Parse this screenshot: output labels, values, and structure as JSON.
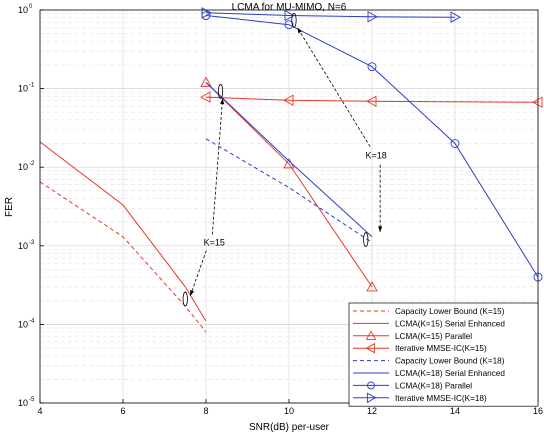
{
  "chart_data": {
    "type": "line",
    "title": "LCMA for MU-MIMO, N=6",
    "xlabel": "SNR(dB) per-user",
    "ylabel": "FER",
    "xlim": [
      4,
      16
    ],
    "ylim_log10": [
      -5,
      0
    ],
    "y_scale": "log",
    "grid": true,
    "legend_position": "bottom-right",
    "x_ticks": [
      "4",
      "6",
      "8",
      "10",
      "12",
      "14",
      "16"
    ],
    "y_ticks": [
      {
        "base": "10",
        "exp": "0",
        "value": 1
      },
      {
        "base": "10",
        "exp": "-1",
        "value": 0.1
      },
      {
        "base": "10",
        "exp": "-2",
        "value": 0.01
      },
      {
        "base": "10",
        "exp": "-3",
        "value": 0.001
      },
      {
        "base": "10",
        "exp": "-4",
        "value": 0.0001
      },
      {
        "base": "10",
        "exp": "-5",
        "value": 1e-05
      }
    ],
    "series": [
      {
        "name": "Capacity Lower Bound (K=15)",
        "color": "#e8372a",
        "dash": "4,3",
        "marker": "none",
        "x": [
          4,
          6,
          7.5,
          8
        ],
        "y": [
          0.0065,
          0.0013,
          0.00017,
          8e-05
        ]
      },
      {
        "name": "LCMA(K=15) Serial Enhanced",
        "color": "#e8372a",
        "dash": "",
        "marker": "none",
        "x": [
          4,
          6,
          7.5,
          8
        ],
        "y": [
          0.021,
          0.0033,
          0.0003,
          0.00011
        ]
      },
      {
        "name": "LCMA(K=15) Parallel",
        "color": "#e8372a",
        "dash": "",
        "marker": "triangle-up",
        "x": [
          8,
          10,
          12
        ],
        "y": [
          0.12,
          0.011,
          0.0003
        ]
      },
      {
        "name": "Iterative MMSE-IC(K=15)",
        "color": "#e8372a",
        "dash": "",
        "marker": "triangle-left",
        "x": [
          8,
          10,
          12,
          16
        ],
        "y": [
          0.078,
          0.071,
          0.069,
          0.067
        ]
      },
      {
        "name": "Capacity Lower Bound (K=18)",
        "color": "#2b3fc8",
        "dash": "4,3",
        "marker": "none",
        "x": [
          8,
          10,
          12
        ],
        "y": [
          0.023,
          0.0055,
          0.0011
        ]
      },
      {
        "name": "LCMA(K=18) Serial Enhanced",
        "color": "#2b3fc8",
        "dash": "",
        "marker": "none",
        "x": [
          8,
          10,
          12
        ],
        "y": [
          0.12,
          0.012,
          0.0013
        ]
      },
      {
        "name": "LCMA(K=18) Parallel",
        "color": "#2b3fc8",
        "dash": "",
        "marker": "circle",
        "x": [
          8,
          10,
          12,
          14,
          16
        ],
        "y": [
          0.85,
          0.65,
          0.19,
          0.02,
          0.0004
        ]
      },
      {
        "name": "Iterative MMSE-IC(K=18)",
        "color": "#2b3fc8",
        "dash": "",
        "marker": "triangle-right",
        "x": [
          8,
          10,
          12,
          14
        ],
        "y": [
          0.92,
          0.85,
          0.82,
          0.81
        ]
      }
    ],
    "annotations": [
      {
        "text": "K=15",
        "x": 8.2,
        "y": 0.0011
      },
      {
        "text": "K=18",
        "x": 12.1,
        "y": 0.014
      }
    ]
  }
}
